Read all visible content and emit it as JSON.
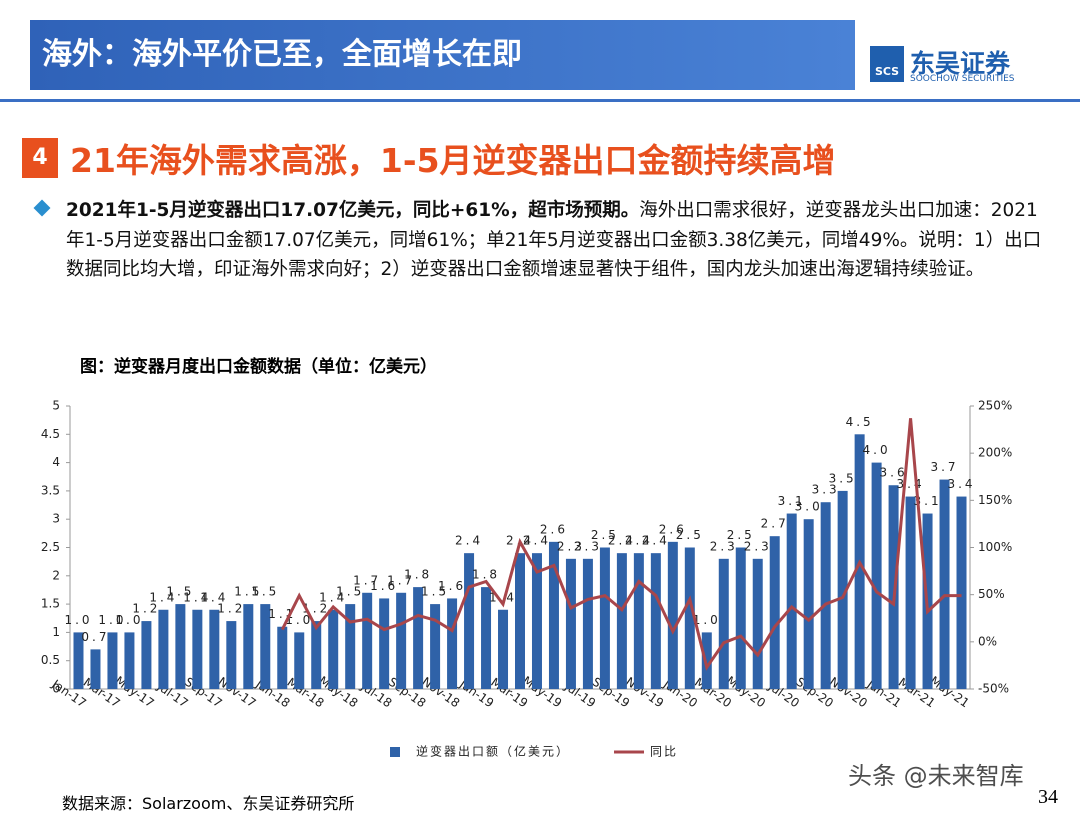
{
  "header": {
    "title": "海外：海外平价已至，全面增长在即",
    "logo_mark": "SCS",
    "logo_name": "东吴证券",
    "logo_en": "SOOCHOW SECURITIES"
  },
  "section": {
    "number": "4",
    "title": "21年海外需求高涨，1-5月逆变器出口金额持续高增"
  },
  "bullet": {
    "bold": "2021年1-5月逆变器出口17.07亿美元，同比+61%，超市场预期。",
    "text": "海外出口需求很好，逆变器龙头出口加速：2021年1-5月逆变器出口金额17.07亿美元，同增61%；单21年5月逆变器出口金额3.38亿美元，同增49%。说明：1）出口数据同比均大增，印证海外需求向好；2）逆变器出口金额增速显著快于组件，国内龙头加速出海逻辑持续验证。"
  },
  "chart_data": {
    "type": "bar_line",
    "title": "图：逆变器月度出口金额数据（单位：亿美元）",
    "categories": [
      "Jan-17",
      null,
      "Mar-17",
      null,
      "May-17",
      null,
      "Jul-17",
      null,
      "Sep-17",
      null,
      "Nov-17",
      null,
      "Jan-18",
      null,
      "Mar-18",
      null,
      "May-18",
      null,
      "Jul-18",
      null,
      "Sep-18",
      null,
      "Nov-18",
      null,
      "Jan-19",
      null,
      "Mar-19",
      null,
      "May-19",
      null,
      "Jul-19",
      null,
      "Sep-19",
      null,
      "Nov-19",
      null,
      "Jan-20",
      null,
      "Mar-20",
      null,
      "May-20",
      null,
      "Jul-20",
      null,
      "Sep-20",
      null,
      "Nov-20",
      null,
      "Jan-21",
      null,
      "Mar-21",
      null,
      "May-21"
    ],
    "series": [
      {
        "name": "逆变器出口额（亿美元）",
        "color": "#2f62a8",
        "values": [
          1.0,
          0.7,
          1.0,
          1.0,
          1.2,
          1.4,
          1.5,
          1.4,
          1.4,
          1.2,
          1.5,
          1.5,
          1.1,
          1.0,
          1.2,
          1.4,
          1.5,
          1.7,
          1.6,
          1.7,
          1.8,
          1.5,
          1.6,
          2.4,
          1.8,
          1.4,
          2.4,
          2.4,
          2.6,
          2.3,
          2.3,
          2.5,
          2.4,
          2.4,
          2.4,
          2.6,
          2.5,
          1.0,
          2.3,
          2.5,
          2.3,
          2.7,
          3.1,
          3.0,
          3.3,
          3.5,
          4.5,
          4.0,
          3.6,
          3.4,
          3.1,
          3.7,
          3.4
        ],
        "value_labels": [
          "1.0",
          "0.7",
          "1.0",
          "1.0",
          "1.2",
          "1.4",
          "1.5",
          "1.4",
          "1.4",
          "1.2",
          "1.5",
          "1.5",
          "1.1",
          "1.0",
          "1.2",
          "1.4",
          "1.5",
          "1.7",
          "1.6",
          "1.7",
          "1.8",
          "1.5",
          "1.6",
          "2.4",
          "1.8",
          "1.4",
          "2.4",
          "2.4",
          "2.6",
          "2.3",
          "2.3",
          "2.5",
          "2.4",
          "2.4",
          "2.4",
          "2.6",
          "2.5",
          "1.0",
          "2.3",
          "2.5",
          "2.3",
          "2.7",
          "3.1",
          "3.0",
          "3.3",
          "3.5",
          "4.5",
          "4.0",
          "3.6",
          "3.4",
          "3.1",
          "3.7",
          "3.4"
        ]
      },
      {
        "name": "同比",
        "color": "#a8464b",
        "axis": "y2",
        "values": [
          null,
          null,
          null,
          null,
          null,
          null,
          null,
          null,
          null,
          null,
          null,
          null,
          13,
          49,
          15,
          37,
          21,
          24,
          13,
          19,
          28,
          23,
          12,
          58,
          64,
          40,
          106,
          74,
          81,
          36,
          45,
          49,
          34,
          64,
          49,
          11,
          45,
          -27,
          -1,
          6,
          -14,
          16,
          37,
          23,
          40,
          47,
          84,
          53,
          40,
          237,
          32,
          49,
          49
        ]
      }
    ],
    "ylim": [
      0,
      5
    ],
    "yticks": [
      0,
      0.5,
      1,
      1.5,
      2,
      2.5,
      3,
      3.5,
      4,
      4.5,
      5
    ],
    "y2lim": [
      -50,
      250
    ],
    "y2ticks": [
      {
        "value": -50,
        "label": "-50%"
      },
      {
        "value": 0,
        "label": "0%"
      },
      {
        "value": 50,
        "label": "50%"
      },
      {
        "value": 100,
        "label": "100%"
      },
      {
        "value": 150,
        "label": "150%"
      },
      {
        "value": 200,
        "label": "200%"
      },
      {
        "value": 250,
        "label": "250%"
      }
    ],
    "legend": "bottom"
  },
  "footer": {
    "source": "数据来源：Solarzoom、东吴证券研究所",
    "page": "34",
    "watermark": "头条 @未来智库"
  }
}
